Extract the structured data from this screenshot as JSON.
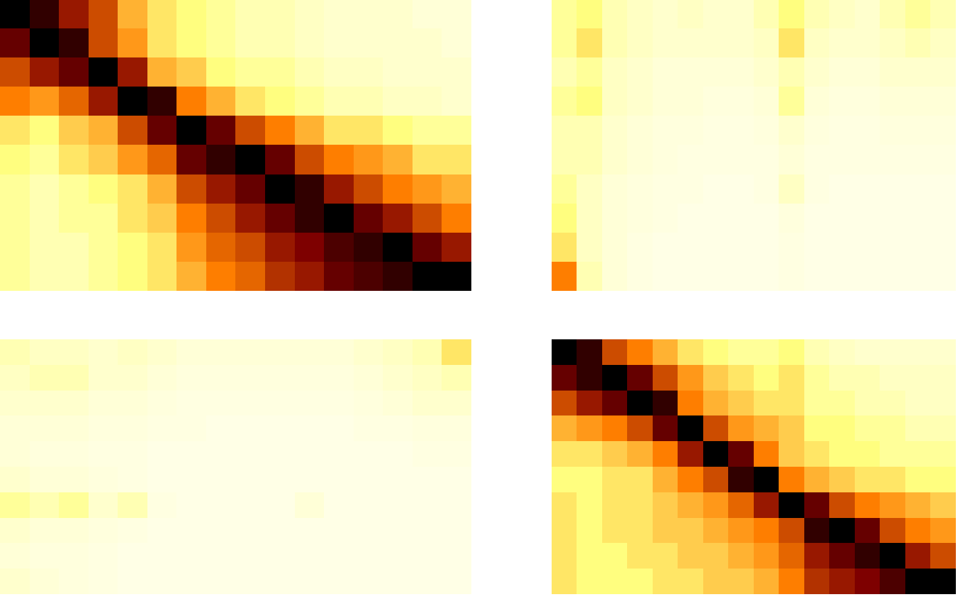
{
  "chart_data": [
    {
      "type": "heatmap",
      "tick_labels": false,
      "color_range": [
        0,
        1
      ],
      "cells": [
        [
          1.0,
          0.9,
          0.7,
          0.6,
          0.4,
          0.3,
          0.25,
          0.2,
          0.15,
          0.15,
          0.12,
          0.1,
          0.1,
          0.1,
          0.08,
          0.08
        ],
        [
          0.8,
          1.0,
          0.9,
          0.6,
          0.45,
          0.3,
          0.25,
          0.2,
          0.15,
          0.15,
          0.12,
          0.1,
          0.1,
          0.1,
          0.1,
          0.08
        ],
        [
          0.6,
          0.7,
          0.8,
          1.0,
          0.7,
          0.4,
          0.35,
          0.25,
          0.2,
          0.2,
          0.15,
          0.12,
          0.12,
          0.1,
          0.1,
          0.1
        ],
        [
          0.5,
          0.45,
          0.55,
          0.7,
          1.0,
          0.9,
          0.5,
          0.4,
          0.3,
          0.25,
          0.2,
          0.15,
          0.15,
          0.12,
          0.12,
          0.1
        ],
        [
          0.3,
          0.25,
          0.35,
          0.4,
          0.6,
          0.8,
          1.0,
          0.8,
          0.6,
          0.5,
          0.4,
          0.3,
          0.3,
          0.25,
          0.2,
          0.2
        ],
        [
          0.25,
          0.2,
          0.3,
          0.35,
          0.45,
          0.55,
          0.8,
          0.9,
          1.0,
          0.8,
          0.6,
          0.5,
          0.45,
          0.4,
          0.3,
          0.3
        ],
        [
          0.2,
          0.15,
          0.2,
          0.25,
          0.3,
          0.4,
          0.6,
          0.7,
          0.8,
          1.0,
          0.9,
          0.7,
          0.6,
          0.5,
          0.45,
          0.4
        ],
        [
          0.2,
          0.15,
          0.2,
          0.2,
          0.3,
          0.35,
          0.5,
          0.6,
          0.7,
          0.8,
          0.9,
          1.0,
          0.8,
          0.7,
          0.6,
          0.5
        ],
        [
          0.2,
          0.15,
          0.15,
          0.2,
          0.25,
          0.3,
          0.45,
          0.55,
          0.6,
          0.7,
          0.75,
          0.85,
          0.9,
          1.0,
          0.8,
          0.7
        ],
        [
          0.2,
          0.15,
          0.15,
          0.2,
          0.25,
          0.3,
          0.4,
          0.5,
          0.55,
          0.65,
          0.7,
          0.8,
          0.85,
          0.9,
          1.0,
          1.0
        ]
      ]
    },
    {
      "type": "heatmap",
      "tick_labels": false,
      "color_range": [
        0,
        1
      ],
      "cells": [
        [
          0.2,
          0.25,
          0.15,
          0.12,
          0.1,
          0.12,
          0.1,
          0.1,
          0.15,
          0.25,
          0.15,
          0.12,
          0.1,
          0.15,
          0.2,
          0.15
        ],
        [
          0.2,
          0.3,
          0.15,
          0.12,
          0.1,
          0.1,
          0.1,
          0.1,
          0.12,
          0.3,
          0.12,
          0.1,
          0.1,
          0.12,
          0.15,
          0.12
        ],
        [
          0.15,
          0.2,
          0.12,
          0.1,
          0.08,
          0.08,
          0.08,
          0.08,
          0.1,
          0.15,
          0.1,
          0.08,
          0.08,
          0.1,
          0.1,
          0.1
        ],
        [
          0.2,
          0.25,
          0.12,
          0.1,
          0.08,
          0.08,
          0.07,
          0.07,
          0.08,
          0.2,
          0.08,
          0.07,
          0.07,
          0.08,
          0.08,
          0.08
        ],
        [
          0.15,
          0.15,
          0.1,
          0.08,
          0.07,
          0.07,
          0.06,
          0.06,
          0.07,
          0.1,
          0.07,
          0.06,
          0.06,
          0.07,
          0.07,
          0.07
        ],
        [
          0.15,
          0.15,
          0.1,
          0.08,
          0.07,
          0.06,
          0.06,
          0.06,
          0.06,
          0.08,
          0.06,
          0.06,
          0.06,
          0.06,
          0.06,
          0.06
        ],
        [
          0.2,
          0.12,
          0.08,
          0.07,
          0.06,
          0.06,
          0.05,
          0.05,
          0.06,
          0.12,
          0.06,
          0.05,
          0.05,
          0.05,
          0.05,
          0.05
        ],
        [
          0.25,
          0.12,
          0.08,
          0.07,
          0.06,
          0.05,
          0.05,
          0.05,
          0.05,
          0.07,
          0.05,
          0.05,
          0.05,
          0.05,
          0.05,
          0.05
        ],
        [
          0.3,
          0.12,
          0.08,
          0.06,
          0.05,
          0.05,
          0.05,
          0.05,
          0.05,
          0.06,
          0.05,
          0.05,
          0.05,
          0.05,
          0.05,
          0.05
        ],
        [
          0.5,
          0.15,
          0.08,
          0.06,
          0.05,
          0.05,
          0.05,
          0.05,
          0.05,
          0.06,
          0.05,
          0.05,
          0.05,
          0.05,
          0.05,
          0.05
        ]
      ]
    },
    {
      "type": "heatmap",
      "tick_labels": false,
      "color_range": [
        0,
        1
      ],
      "cells": [
        [
          0.15,
          0.12,
          0.12,
          0.1,
          0.12,
          0.1,
          0.08,
          0.08,
          0.08,
          0.08,
          0.08,
          0.08,
          0.1,
          0.12,
          0.15,
          0.3
        ],
        [
          0.12,
          0.15,
          0.15,
          0.1,
          0.1,
          0.08,
          0.07,
          0.07,
          0.07,
          0.07,
          0.07,
          0.07,
          0.08,
          0.1,
          0.12,
          0.15
        ],
        [
          0.1,
          0.1,
          0.1,
          0.08,
          0.08,
          0.07,
          0.06,
          0.06,
          0.06,
          0.06,
          0.06,
          0.06,
          0.07,
          0.08,
          0.1,
          0.1
        ],
        [
          0.08,
          0.08,
          0.08,
          0.07,
          0.07,
          0.06,
          0.06,
          0.05,
          0.05,
          0.05,
          0.05,
          0.05,
          0.06,
          0.06,
          0.07,
          0.07
        ],
        [
          0.08,
          0.07,
          0.07,
          0.06,
          0.06,
          0.05,
          0.05,
          0.05,
          0.05,
          0.05,
          0.05,
          0.05,
          0.05,
          0.05,
          0.06,
          0.06
        ],
        [
          0.1,
          0.08,
          0.08,
          0.07,
          0.06,
          0.05,
          0.05,
          0.05,
          0.05,
          0.05,
          0.05,
          0.05,
          0.05,
          0.05,
          0.05,
          0.05
        ],
        [
          0.2,
          0.15,
          0.2,
          0.1,
          0.15,
          0.06,
          0.05,
          0.05,
          0.05,
          0.05,
          0.08,
          0.05,
          0.05,
          0.05,
          0.05,
          0.05
        ],
        [
          0.1,
          0.08,
          0.08,
          0.07,
          0.06,
          0.05,
          0.05,
          0.05,
          0.05,
          0.05,
          0.05,
          0.05,
          0.05,
          0.05,
          0.05,
          0.05
        ],
        [
          0.08,
          0.07,
          0.07,
          0.06,
          0.05,
          0.05,
          0.05,
          0.05,
          0.05,
          0.05,
          0.05,
          0.05,
          0.05,
          0.05,
          0.05,
          0.05
        ],
        [
          0.1,
          0.08,
          0.07,
          0.06,
          0.05,
          0.05,
          0.05,
          0.05,
          0.05,
          0.05,
          0.05,
          0.05,
          0.05,
          0.05,
          0.05,
          0.05
        ]
      ]
    },
    {
      "type": "heatmap",
      "tick_labels": false,
      "color_range": [
        0,
        1
      ],
      "cells": [
        [
          1.0,
          0.9,
          0.6,
          0.5,
          0.4,
          0.3,
          0.25,
          0.2,
          0.2,
          0.25,
          0.15,
          0.12,
          0.1,
          0.1,
          0.1,
          0.1
        ],
        [
          0.8,
          0.9,
          1.0,
          0.8,
          0.6,
          0.45,
          0.35,
          0.3,
          0.25,
          0.3,
          0.2,
          0.15,
          0.15,
          0.12,
          0.12,
          0.12
        ],
        [
          0.6,
          0.7,
          0.8,
          1.0,
          0.9,
          0.5,
          0.4,
          0.35,
          0.3,
          0.3,
          0.2,
          0.2,
          0.15,
          0.15,
          0.12,
          0.12
        ],
        [
          0.4,
          0.45,
          0.5,
          0.6,
          0.8,
          1.0,
          0.6,
          0.45,
          0.4,
          0.35,
          0.25,
          0.25,
          0.2,
          0.2,
          0.15,
          0.15
        ],
        [
          0.3,
          0.3,
          0.35,
          0.4,
          0.5,
          0.7,
          1.0,
          0.8,
          0.5,
          0.35,
          0.3,
          0.25,
          0.25,
          0.2,
          0.2,
          0.2
        ],
        [
          0.25,
          0.25,
          0.3,
          0.3,
          0.4,
          0.5,
          0.6,
          0.9,
          1.0,
          0.5,
          0.4,
          0.35,
          0.3,
          0.3,
          0.25,
          0.25
        ],
        [
          0.3,
          0.25,
          0.3,
          0.3,
          0.35,
          0.4,
          0.45,
          0.55,
          0.7,
          1.0,
          0.8,
          0.6,
          0.5,
          0.45,
          0.4,
          0.35
        ],
        [
          0.3,
          0.25,
          0.3,
          0.3,
          0.35,
          0.35,
          0.4,
          0.45,
          0.5,
          0.6,
          0.9,
          1.0,
          0.8,
          0.6,
          0.5,
          0.45
        ],
        [
          0.3,
          0.25,
          0.25,
          0.3,
          0.3,
          0.35,
          0.35,
          0.4,
          0.45,
          0.55,
          0.7,
          0.8,
          0.9,
          1.0,
          0.7,
          0.6
        ],
        [
          0.3,
          0.25,
          0.25,
          0.25,
          0.3,
          0.3,
          0.35,
          0.35,
          0.4,
          0.5,
          0.65,
          0.7,
          0.75,
          0.85,
          1.0,
          1.0
        ]
      ]
    }
  ]
}
